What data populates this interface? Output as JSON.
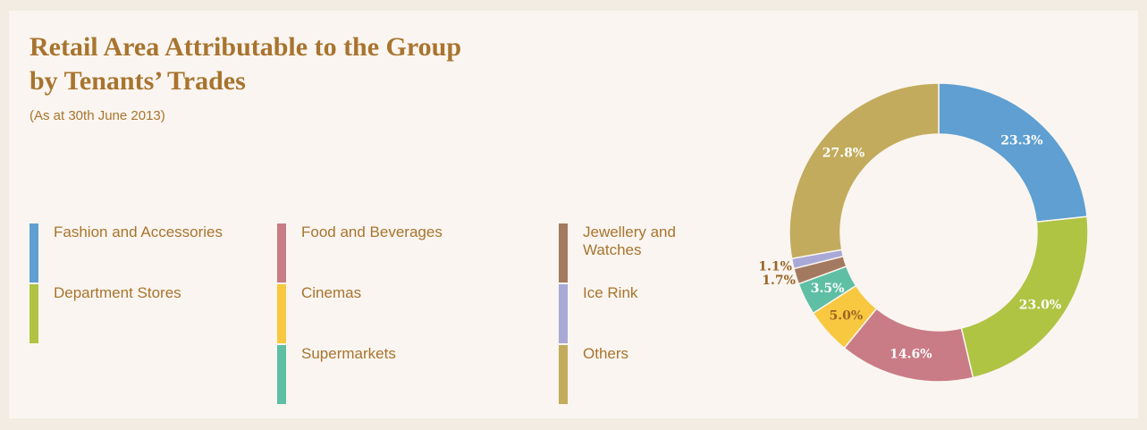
{
  "chart_data": {
    "type": "donut",
    "title": [
      "Retail Area Attributable to the Group",
      "by Tenants’ Trades"
    ],
    "subtitle": "(As at 30th June 2013)",
    "series": [
      {
        "name": "Fashion and Accessories",
        "color": "#5f9fd1",
        "values": [
          23.3
        ],
        "value_labels": [
          "23.3%"
        ],
        "label_color": "#ffffff"
      },
      {
        "name": "Department Stores",
        "color": "#afc443",
        "values": [
          23.0
        ],
        "value_labels": [
          "23.0%"
        ],
        "label_color": "#ffffff"
      },
      {
        "name": "Food and Beverages",
        "color": "#c97b86",
        "values": [
          14.6
        ],
        "value_labels": [
          "14.6%"
        ],
        "label_color": "#ffffff"
      },
      {
        "name": "Cinemas",
        "color": "#f8c840",
        "values": [
          5.0
        ],
        "value_labels": [
          "5.0%"
        ],
        "label_color": "#9a6425"
      },
      {
        "name": "Supermarkets",
        "color": "#5fbfa5",
        "values": [
          3.5
        ],
        "value_labels": [
          "3.5%"
        ],
        "label_color": "#ffffff"
      },
      {
        "name": "Jewellery and Watches",
        "color": "#a37a60",
        "values": [
          1.7
        ],
        "value_labels": [
          "1.7%"
        ],
        "label_color": "#9a6425"
      },
      {
        "name": "Ice Rink",
        "color": "#a9a9d8",
        "values": [
          1.1
        ],
        "value_labels": [
          "1.1%"
        ],
        "label_color": "#9a6425"
      },
      {
        "name": "Others",
        "color": "#c2ab5c",
        "values": [
          27.8
        ],
        "value_labels": [
          "27.8%"
        ],
        "label_color": "#ffffff"
      }
    ]
  }
}
